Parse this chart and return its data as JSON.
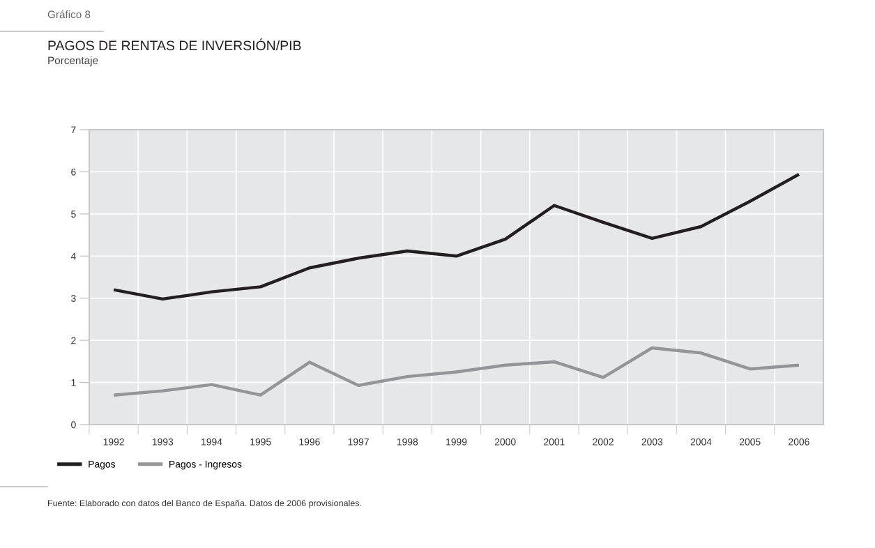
{
  "chart_data": {
    "type": "line",
    "title": "PAGOS DE RENTAS DE INVERSIÓN/PIB",
    "subtitle": "Porcentaje",
    "categories": [
      "1992",
      "1993",
      "1994",
      "1995",
      "1996",
      "1997",
      "1998",
      "1999",
      "2000",
      "2001",
      "2002",
      "2003",
      "2004",
      "2005",
      "2006"
    ],
    "series": [
      {
        "name": "Pagos",
        "color": "#231f20",
        "values": [
          3.2,
          2.98,
          3.15,
          3.27,
          3.72,
          3.95,
          4.12,
          4.0,
          4.4,
          5.2,
          4.8,
          4.42,
          4.7,
          5.3,
          5.94
        ]
      },
      {
        "name": "Pagos - Ingresos",
        "color": "#939598",
        "values": [
          0.7,
          0.8,
          0.95,
          0.7,
          1.48,
          0.93,
          1.14,
          1.25,
          1.41,
          1.49,
          1.12,
          1.82,
          1.7,
          1.32,
          1.41
        ]
      }
    ],
    "ylim": [
      0,
      7
    ],
    "yticks": [
      0,
      1,
      2,
      3,
      4,
      5,
      6,
      7
    ],
    "grid": true,
    "legend": "bottom left",
    "marker": "none",
    "line_style": "solid",
    "annotations": [
      "Gráfico 8",
      "Fuente: Elaborado con datos del Banco de España. Datos de 2006 provisionales."
    ]
  }
}
